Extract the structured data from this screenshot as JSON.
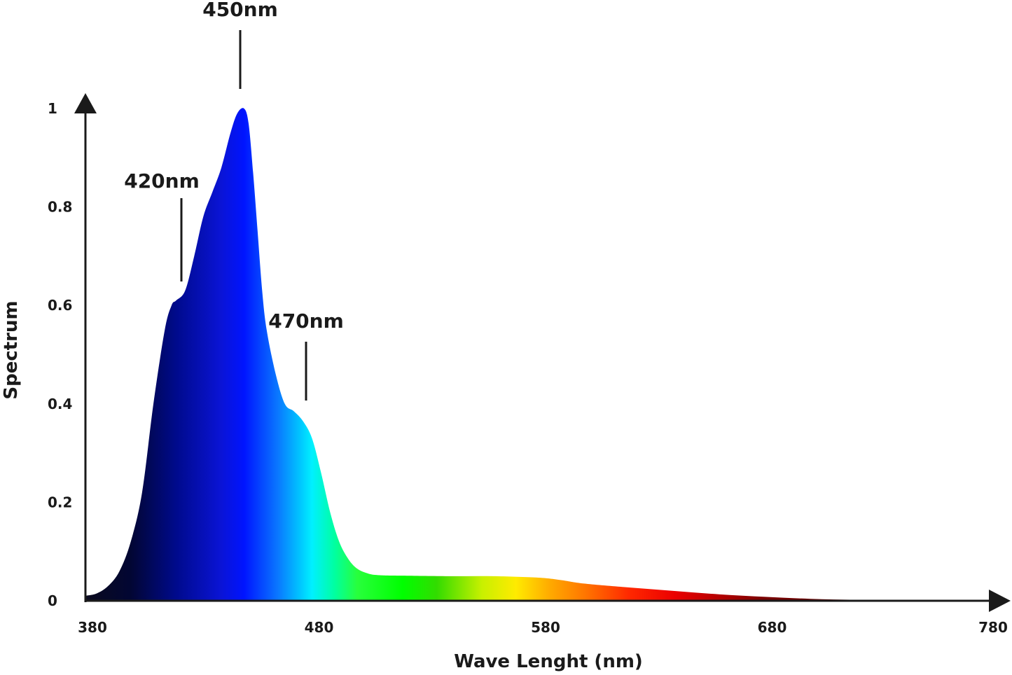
{
  "chart_data": {
    "type": "area",
    "xlabel": "Wave Lenght (nm)",
    "ylabel": "Spectrum",
    "xlim": [
      380,
      780
    ],
    "ylim": [
      0,
      1
    ],
    "x_ticks": [
      "380",
      "480",
      "580",
      "680",
      "780"
    ],
    "y_ticks": [
      "0",
      "0.2",
      "0.4",
      "0.6",
      "0.8",
      "1"
    ],
    "grid": false,
    "series": [
      {
        "x": [
          380,
          385,
          390,
          395,
          400,
          405,
          410,
          415,
          418,
          420,
          424,
          428,
          432,
          436,
          440,
          444,
          447,
          450,
          452,
          454,
          456,
          458,
          460,
          464,
          468,
          472,
          476,
          480,
          484,
          488,
          492,
          496,
          500,
          505,
          510,
          520,
          540,
          560,
          580,
          590,
          600,
          620,
          640,
          660,
          680,
          700,
          720,
          740,
          760,
          780
        ],
        "y": [
          0.01,
          0.015,
          0.03,
          0.06,
          0.12,
          0.22,
          0.4,
          0.55,
          0.6,
          0.61,
          0.63,
          0.7,
          0.78,
          0.83,
          0.88,
          0.95,
          0.99,
          1.0,
          0.97,
          0.87,
          0.75,
          0.63,
          0.55,
          0.46,
          0.4,
          0.385,
          0.365,
          0.33,
          0.26,
          0.18,
          0.12,
          0.085,
          0.065,
          0.055,
          0.052,
          0.051,
          0.05,
          0.05,
          0.047,
          0.042,
          0.035,
          0.027,
          0.02,
          0.013,
          0.008,
          0.004,
          0.002,
          0.001,
          0.0,
          0.0
        ]
      }
    ],
    "annotations": [
      {
        "label": "420nm",
        "x": 420
      },
      {
        "label": "450nm",
        "x": 450
      },
      {
        "label": "470nm",
        "x": 474
      }
    ],
    "fill_gradient_stops": [
      {
        "nm": 380,
        "color": "#0a0a1e"
      },
      {
        "nm": 400,
        "color": "#020633"
      },
      {
        "nm": 420,
        "color": "#000a8c"
      },
      {
        "nm": 440,
        "color": "#0a14d6"
      },
      {
        "nm": 450,
        "color": "#0014ff"
      },
      {
        "nm": 465,
        "color": "#0a78ff"
      },
      {
        "nm": 475,
        "color": "#00c8ff"
      },
      {
        "nm": 480,
        "color": "#00f0ff"
      },
      {
        "nm": 490,
        "color": "#00ffa0"
      },
      {
        "nm": 500,
        "color": "#28ff3c"
      },
      {
        "nm": 520,
        "color": "#00ff00"
      },
      {
        "nm": 535,
        "color": "#32dc00"
      },
      {
        "nm": 555,
        "color": "#c8f000"
      },
      {
        "nm": 570,
        "color": "#ffeb00"
      },
      {
        "nm": 585,
        "color": "#ffaa00"
      },
      {
        "nm": 600,
        "color": "#ff7800"
      },
      {
        "nm": 620,
        "color": "#ff2800"
      },
      {
        "nm": 640,
        "color": "#eb0000"
      },
      {
        "nm": 660,
        "color": "#b40000"
      },
      {
        "nm": 680,
        "color": "#780000"
      },
      {
        "nm": 780,
        "color": "#3c0000"
      }
    ]
  }
}
